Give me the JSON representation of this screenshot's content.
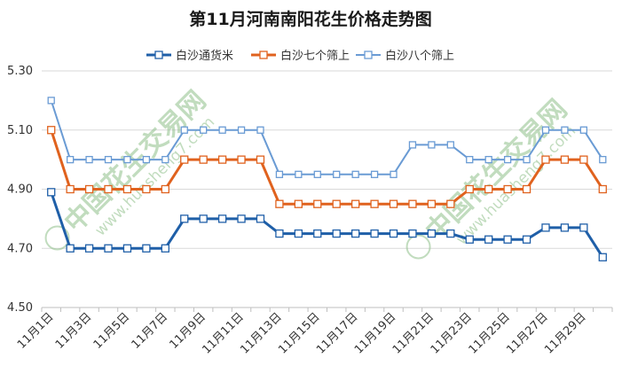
{
  "chart_data": {
    "type": "line",
    "title": "第11月河南南阳花生价格走势图",
    "xlabel": "",
    "ylabel": "",
    "ylim": [
      4.5,
      5.3
    ],
    "yticks": [
      "5.30",
      "5.10",
      "4.90",
      "4.70",
      "4.50"
    ],
    "ytick_values": [
      5.3,
      5.1,
      4.9,
      4.7,
      4.5
    ],
    "grid": "horizontal",
    "legend_position": "top-center",
    "categories": [
      "11月1日",
      "11月2日",
      "11月3日",
      "11月4日",
      "11月5日",
      "11月6日",
      "11月7日",
      "11月8日",
      "11月9日",
      "11月10日",
      "11月11日",
      "11月12日",
      "11月13日",
      "11月14日",
      "11月15日",
      "11月16日",
      "11月17日",
      "11月18日",
      "11月19日",
      "11月20日",
      "11月21日",
      "11月22日",
      "11月23日",
      "11月24日",
      "11月25日",
      "11月26日",
      "11月27日",
      "11月28日",
      "11月29日",
      "11月30日"
    ],
    "tick_labels": [
      "11月1日",
      "11月3日",
      "11月5日",
      "11月7日",
      "11月9日",
      "11月11日",
      "11月13日",
      "11月15日",
      "11月17日",
      "11月19日",
      "11月21日",
      "11月23日",
      "11月25日",
      "11月27日",
      "11月29日"
    ],
    "series": [
      {
        "name": "白沙通货米",
        "color": "#1f5fa8",
        "values": [
          4.89,
          4.7,
          4.7,
          4.7,
          4.7,
          4.7,
          4.7,
          4.8,
          4.8,
          4.8,
          4.8,
          4.8,
          4.75,
          4.75,
          4.75,
          4.75,
          4.75,
          4.75,
          4.75,
          4.75,
          4.75,
          4.75,
          4.73,
          4.73,
          4.73,
          4.73,
          4.77,
          4.77,
          4.77,
          4.67
        ]
      },
      {
        "name": "白沙七个筛上",
        "color": "#e0621e",
        "values": [
          5.1,
          4.9,
          4.9,
          4.9,
          4.9,
          4.9,
          4.9,
          5.0,
          5.0,
          5.0,
          5.0,
          5.0,
          4.85,
          4.85,
          4.85,
          4.85,
          4.85,
          4.85,
          4.85,
          4.85,
          4.85,
          4.85,
          4.9,
          4.9,
          4.9,
          4.9,
          5.0,
          5.0,
          5.0,
          4.9
        ]
      },
      {
        "name": "白沙八个筛上",
        "color": "#6a9bd4",
        "values": [
          5.2,
          5.0,
          5.0,
          5.0,
          5.0,
          5.0,
          5.0,
          5.1,
          5.1,
          5.1,
          5.1,
          5.1,
          4.95,
          4.95,
          4.95,
          4.95,
          4.95,
          4.95,
          4.95,
          5.05,
          5.05,
          5.05,
          5.0,
          5.0,
          5.0,
          5.0,
          5.1,
          5.1,
          5.1,
          5.0
        ]
      }
    ]
  },
  "watermark": {
    "text": "中国花生交易网",
    "url": "www.huasheng7.com",
    "color": "#8fc08a"
  }
}
